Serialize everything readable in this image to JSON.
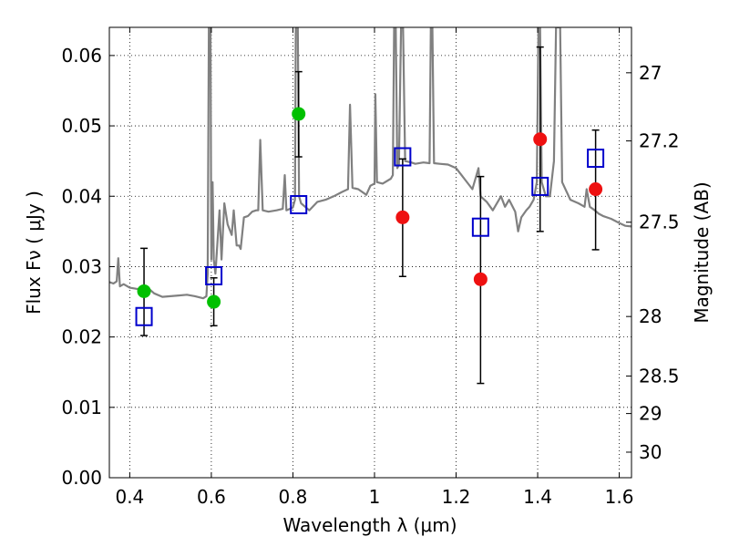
{
  "chart_data": {
    "type": "scatter",
    "title": "",
    "xlabel": "Wavelength  λ (μm)",
    "ylabel": "Flux  Fν  ( μJy )",
    "ylabel_right": "Magnitude (AB)",
    "xlim": [
      0.35,
      1.63
    ],
    "ylim": [
      0.0,
      0.064
    ],
    "grid": true,
    "x_ticks": [
      {
        "value": 0.4,
        "label": "0.4"
      },
      {
        "value": 0.6,
        "label": "0.6"
      },
      {
        "value": 0.8,
        "label": "0.8"
      },
      {
        "value": 1.0,
        "label": "1"
      },
      {
        "value": 1.2,
        "label": "1.2"
      },
      {
        "value": 1.4,
        "label": "1.4"
      },
      {
        "value": 1.6,
        "label": "1.6"
      }
    ],
    "y_ticks": [
      {
        "value": 0.0,
        "label": "0.00"
      },
      {
        "value": 0.01,
        "label": "0.01"
      },
      {
        "value": 0.02,
        "label": "0.02"
      },
      {
        "value": 0.03,
        "label": "0.03"
      },
      {
        "value": 0.04,
        "label": "0.04"
      },
      {
        "value": 0.05,
        "label": "0.05"
      },
      {
        "value": 0.06,
        "label": "0.06"
      }
    ],
    "right_ticks": [
      {
        "mag": 27.0,
        "label": "27"
      },
      {
        "mag": 27.2,
        "label": "27.2"
      },
      {
        "mag": 27.5,
        "label": "27.5"
      },
      {
        "mag": 28.0,
        "label": "28"
      },
      {
        "mag": 28.5,
        "label": "28.5"
      },
      {
        "mag": 29.0,
        "label": "29"
      },
      {
        "mag": 30.0,
        "label": "30"
      }
    ],
    "series": [
      {
        "marker": "circle",
        "color": "#00c000",
        "with_errorbars": true,
        "points": [
          {
            "x": 0.435,
            "y": 0.0265,
            "yerr_low": 0.0202,
            "yerr_high": 0.0326
          },
          {
            "x": 0.606,
            "y": 0.025,
            "yerr_low": 0.0216,
            "yerr_high": 0.0284
          },
          {
            "x": 0.814,
            "y": 0.0517,
            "yerr_low": 0.0456,
            "yerr_high": 0.0577
          }
        ]
      },
      {
        "marker": "circle",
        "color": "#ee1111",
        "with_errorbars": true,
        "points": [
          {
            "x": 1.069,
            "y": 0.037,
            "yerr_low": 0.0286,
            "yerr_high": 0.0453
          },
          {
            "x": 1.26,
            "y": 0.0282,
            "yerr_low": 0.0134,
            "yerr_high": 0.0428
          },
          {
            "x": 1.406,
            "y": 0.0481,
            "yerr_low": 0.035,
            "yerr_high": 0.0612
          },
          {
            "x": 1.542,
            "y": 0.041,
            "yerr_low": 0.0324,
            "yerr_high": 0.0494
          }
        ]
      },
      {
        "marker": "square-open",
        "color": "#0000cc",
        "with_errorbars": false,
        "points": [
          {
            "x": 0.435,
            "y": 0.0229
          },
          {
            "x": 0.606,
            "y": 0.0287
          },
          {
            "x": 0.814,
            "y": 0.0388
          },
          {
            "x": 1.069,
            "y": 0.0456
          },
          {
            "x": 1.26,
            "y": 0.0356
          },
          {
            "x": 1.406,
            "y": 0.0414
          },
          {
            "x": 1.542,
            "y": 0.0454
          }
        ]
      }
    ],
    "spectrum": {
      "color": "#808080",
      "points": [
        [
          0.35,
          0.0278
        ],
        [
          0.36,
          0.0276
        ],
        [
          0.368,
          0.0279
        ],
        [
          0.372,
          0.0312
        ],
        [
          0.376,
          0.0272
        ],
        [
          0.385,
          0.0275
        ],
        [
          0.4,
          0.027
        ],
        [
          0.42,
          0.0268
        ],
        [
          0.44,
          0.0272
        ],
        [
          0.46,
          0.0262
        ],
        [
          0.48,
          0.0257
        ],
        [
          0.5,
          0.0258
        ],
        [
          0.52,
          0.0259
        ],
        [
          0.54,
          0.026
        ],
        [
          0.56,
          0.0258
        ],
        [
          0.58,
          0.0255
        ],
        [
          0.588,
          0.0258
        ],
        [
          0.591,
          0.029
        ],
        [
          0.594,
          0.064
        ],
        [
          0.598,
          0.064
        ],
        [
          0.6,
          0.031
        ],
        [
          0.603,
          0.042
        ],
        [
          0.606,
          0.031
        ],
        [
          0.61,
          0.029
        ],
        [
          0.62,
          0.038
        ],
        [
          0.625,
          0.031
        ],
        [
          0.632,
          0.039
        ],
        [
          0.64,
          0.036
        ],
        [
          0.65,
          0.0345
        ],
        [
          0.655,
          0.038
        ],
        [
          0.662,
          0.033
        ],
        [
          0.668,
          0.033
        ],
        [
          0.672,
          0.0325
        ],
        [
          0.68,
          0.037
        ],
        [
          0.69,
          0.0372
        ],
        [
          0.7,
          0.0378
        ],
        [
          0.71,
          0.038
        ],
        [
          0.715,
          0.038
        ],
        [
          0.72,
          0.048
        ],
        [
          0.726,
          0.038
        ],
        [
          0.74,
          0.0378
        ],
        [
          0.76,
          0.038
        ],
        [
          0.775,
          0.0382
        ],
        [
          0.78,
          0.043
        ],
        [
          0.784,
          0.038
        ],
        [
          0.8,
          0.0384
        ],
        [
          0.805,
          0.0395
        ],
        [
          0.807,
          0.064
        ],
        [
          0.812,
          0.064
        ],
        [
          0.815,
          0.04
        ],
        [
          0.82,
          0.039
        ],
        [
          0.84,
          0.038
        ],
        [
          0.86,
          0.0392
        ],
        [
          0.88,
          0.0395
        ],
        [
          0.9,
          0.04
        ],
        [
          0.92,
          0.0406
        ],
        [
          0.935,
          0.041
        ],
        [
          0.94,
          0.053
        ],
        [
          0.946,
          0.0412
        ],
        [
          0.96,
          0.041
        ],
        [
          0.98,
          0.0402
        ],
        [
          0.99,
          0.0415
        ],
        [
          1.0,
          0.0418
        ],
        [
          1.002,
          0.0545
        ],
        [
          1.006,
          0.042
        ],
        [
          1.02,
          0.0418
        ],
        [
          1.04,
          0.0425
        ],
        [
          1.045,
          0.043
        ],
        [
          1.048,
          0.064
        ],
        [
          1.052,
          0.064
        ],
        [
          1.056,
          0.044
        ],
        [
          1.06,
          0.0445
        ],
        [
          1.065,
          0.064
        ],
        [
          1.07,
          0.064
        ],
        [
          1.075,
          0.045
        ],
        [
          1.09,
          0.0448
        ],
        [
          1.1,
          0.0446
        ],
        [
          1.12,
          0.0448
        ],
        [
          1.135,
          0.0447
        ],
        [
          1.138,
          0.064
        ],
        [
          1.142,
          0.064
        ],
        [
          1.146,
          0.0447
        ],
        [
          1.16,
          0.0446
        ],
        [
          1.18,
          0.0445
        ],
        [
          1.2,
          0.044
        ],
        [
          1.22,
          0.0425
        ],
        [
          1.24,
          0.041
        ],
        [
          1.255,
          0.044
        ],
        [
          1.26,
          0.04
        ],
        [
          1.275,
          0.0392
        ],
        [
          1.29,
          0.038
        ],
        [
          1.31,
          0.04
        ],
        [
          1.32,
          0.0385
        ],
        [
          1.33,
          0.0395
        ],
        [
          1.345,
          0.0378
        ],
        [
          1.352,
          0.035
        ],
        [
          1.36,
          0.037
        ],
        [
          1.372,
          0.038
        ],
        [
          1.38,
          0.0385
        ],
        [
          1.39,
          0.0395
        ],
        [
          1.398,
          0.042
        ],
        [
          1.402,
          0.064
        ],
        [
          1.406,
          0.064
        ],
        [
          1.41,
          0.042
        ],
        [
          1.42,
          0.04
        ],
        [
          1.43,
          0.04
        ],
        [
          1.44,
          0.045
        ],
        [
          1.445,
          0.064
        ],
        [
          1.455,
          0.064
        ],
        [
          1.46,
          0.042
        ],
        [
          1.48,
          0.0395
        ],
        [
          1.5,
          0.039
        ],
        [
          1.515,
          0.0385
        ],
        [
          1.52,
          0.041
        ],
        [
          1.528,
          0.0385
        ],
        [
          1.54,
          0.038
        ],
        [
          1.55,
          0.0375
        ],
        [
          1.56,
          0.0372
        ],
        [
          1.58,
          0.0368
        ],
        [
          1.6,
          0.0362
        ],
        [
          1.615,
          0.0358
        ],
        [
          1.63,
          0.0357
        ]
      ]
    }
  }
}
